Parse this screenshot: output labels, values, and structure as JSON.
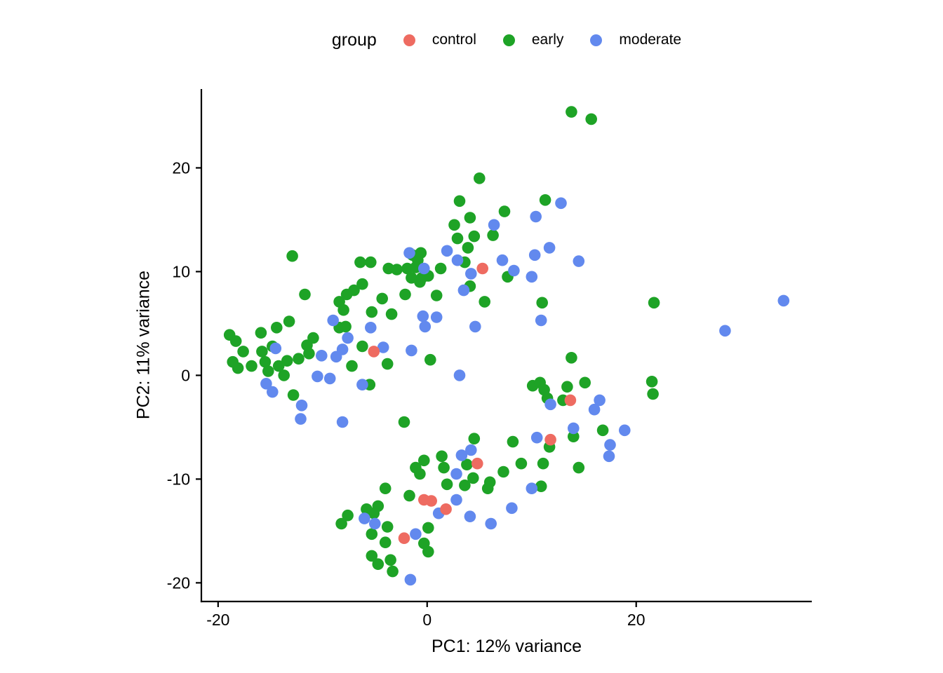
{
  "legend": {
    "title": "group",
    "entries": [
      {
        "label": "control",
        "color": "#EE6B61"
      },
      {
        "label": "early",
        "color": "#1EA326"
      },
      {
        "label": "moderate",
        "color": "#6289EE"
      }
    ]
  },
  "chart_data": {
    "type": "scatter",
    "title": "",
    "xlabel": "PC1: 12% variance",
    "ylabel": "PC2: 11% variance",
    "xticks": [
      -20,
      0,
      20
    ],
    "yticks": [
      -20,
      -10,
      0,
      10,
      20
    ],
    "xlim": [
      -21.6,
      36.8
    ],
    "ylim": [
      -21.8,
      27.6
    ],
    "grid": false,
    "legend_position": "top",
    "axis_color": "#000000",
    "point_radius_px": 8.3,
    "series": [
      {
        "name": "control",
        "color": "#EE6B61",
        "points": [
          [
            5.3,
            10.3
          ],
          [
            -5.1,
            2.3
          ],
          [
            13.7,
            -2.4
          ],
          [
            11.8,
            -6.2
          ],
          [
            4.8,
            -8.5
          ],
          [
            -0.3,
            -12.0
          ],
          [
            0.4,
            -12.1
          ],
          [
            1.8,
            -12.9
          ],
          [
            -2.2,
            -15.7
          ]
        ]
      },
      {
        "name": "early",
        "color": "#1EA326",
        "points": [
          [
            13.8,
            25.4
          ],
          [
            15.7,
            24.7
          ],
          [
            5.0,
            19.0
          ],
          [
            3.1,
            16.8
          ],
          [
            11.3,
            16.9
          ],
          [
            4.1,
            15.2
          ],
          [
            7.4,
            15.8
          ],
          [
            2.6,
            14.5
          ],
          [
            2.9,
            13.2
          ],
          [
            4.5,
            13.4
          ],
          [
            6.3,
            13.5
          ],
          [
            -12.9,
            11.5
          ],
          [
            -6.4,
            10.9
          ],
          [
            -5.4,
            10.9
          ],
          [
            -3.7,
            10.3
          ],
          [
            -2.9,
            10.2
          ],
          [
            -1.4,
            11.6
          ],
          [
            -0.6,
            11.8
          ],
          [
            -0.9,
            11.1
          ],
          [
            -1.9,
            10.3
          ],
          [
            -1.1,
            10.4
          ],
          [
            -1.5,
            9.4
          ],
          [
            -0.5,
            9.4
          ],
          [
            0.1,
            9.6
          ],
          [
            -0.7,
            9.0
          ],
          [
            1.3,
            10.3
          ],
          [
            3.9,
            12.3
          ],
          [
            3.6,
            10.9
          ],
          [
            7.7,
            9.5
          ],
          [
            5.5,
            7.1
          ],
          [
            11.0,
            7.0
          ],
          [
            0.9,
            7.7
          ],
          [
            -2.1,
            7.8
          ],
          [
            -4.3,
            7.4
          ],
          [
            4.1,
            8.6
          ],
          [
            -11.7,
            7.8
          ],
          [
            -6.2,
            8.8
          ],
          [
            -7.0,
            8.2
          ],
          [
            -7.7,
            7.8
          ],
          [
            -8.4,
            7.1
          ],
          [
            -8.0,
            6.3
          ],
          [
            -5.3,
            6.1
          ],
          [
            -3.4,
            5.9
          ],
          [
            -13.2,
            5.2
          ],
          [
            -14.4,
            4.6
          ],
          [
            -15.9,
            4.1
          ],
          [
            -18.9,
            3.9
          ],
          [
            -18.3,
            3.3
          ],
          [
            -17.6,
            2.3
          ],
          [
            -18.6,
            1.3
          ],
          [
            -18.1,
            0.7
          ],
          [
            -16.8,
            0.9
          ],
          [
            -15.5,
            1.3
          ],
          [
            -15.8,
            2.3
          ],
          [
            -14.8,
            2.8
          ],
          [
            -13.4,
            1.4
          ],
          [
            -12.3,
            1.6
          ],
          [
            -10.9,
            3.6
          ],
          [
            -11.5,
            2.9
          ],
          [
            -11.3,
            2.1
          ],
          [
            -14.2,
            0.9
          ],
          [
            -15.2,
            0.4
          ],
          [
            -13.7,
            0.0
          ],
          [
            -12.8,
            -1.9
          ],
          [
            -2.2,
            -4.5
          ],
          [
            -8.4,
            4.6
          ],
          [
            -7.8,
            4.7
          ],
          [
            -7.2,
            0.9
          ],
          [
            -6.2,
            2.8
          ],
          [
            -3.8,
            1.1
          ],
          [
            -5.5,
            -0.9
          ],
          [
            0.3,
            1.5
          ],
          [
            10.1,
            -1.0
          ],
          [
            10.8,
            -0.7
          ],
          [
            11.2,
            -1.4
          ],
          [
            11.5,
            -2.2
          ],
          [
            13.0,
            -2.4
          ],
          [
            13.4,
            -1.1
          ],
          [
            15.1,
            -0.7
          ],
          [
            14.0,
            -5.9
          ],
          [
            16.8,
            -5.3
          ],
          [
            13.8,
            1.7
          ],
          [
            21.7,
            7.0
          ],
          [
            21.5,
            -0.6
          ],
          [
            21.6,
            -1.8
          ],
          [
            -4.0,
            -10.9
          ],
          [
            -4.7,
            -12.6
          ],
          [
            -5.8,
            -12.9
          ],
          [
            -8.2,
            -14.3
          ],
          [
            -7.6,
            -13.5
          ],
          [
            -5.1,
            -13.3
          ],
          [
            -3.8,
            -14.6
          ],
          [
            -5.3,
            -15.3
          ],
          [
            -4.0,
            -16.1
          ],
          [
            -5.3,
            -17.4
          ],
          [
            -4.7,
            -18.2
          ],
          [
            -3.5,
            -17.8
          ],
          [
            -3.3,
            -18.9
          ],
          [
            -1.7,
            -11.6
          ],
          [
            1.9,
            -10.5
          ],
          [
            3.6,
            -10.6
          ],
          [
            0.1,
            -14.7
          ],
          [
            -0.3,
            -16.2
          ],
          [
            0.1,
            -17.0
          ],
          [
            5.8,
            -10.9
          ],
          [
            6.0,
            -10.3
          ],
          [
            4.5,
            -6.1
          ],
          [
            8.2,
            -6.4
          ],
          [
            11.7,
            -6.9
          ],
          [
            -0.3,
            -8.2
          ],
          [
            1.4,
            -7.8
          ],
          [
            1.6,
            -8.9
          ],
          [
            3.8,
            -8.6
          ],
          [
            -0.7,
            -9.5
          ],
          [
            -1.1,
            -8.9
          ],
          [
            4.4,
            -9.9
          ],
          [
            7.3,
            -9.3
          ],
          [
            9.0,
            -8.5
          ],
          [
            11.1,
            -8.5
          ],
          [
            14.5,
            -8.9
          ],
          [
            10.9,
            -10.7
          ]
        ]
      },
      {
        "name": "moderate",
        "color": "#6289EE",
        "points": [
          [
            12.8,
            16.6
          ],
          [
            10.4,
            15.3
          ],
          [
            6.4,
            14.5
          ],
          [
            11.7,
            12.3
          ],
          [
            1.9,
            12.0
          ],
          [
            10.3,
            11.6
          ],
          [
            14.5,
            11.0
          ],
          [
            -1.7,
            11.8
          ],
          [
            -0.3,
            10.3
          ],
          [
            2.9,
            11.1
          ],
          [
            4.2,
            9.8
          ],
          [
            7.2,
            11.1
          ],
          [
            8.3,
            10.1
          ],
          [
            10.0,
            9.5
          ],
          [
            10.9,
            5.3
          ],
          [
            3.5,
            8.2
          ],
          [
            -0.4,
            5.7
          ],
          [
            0.9,
            5.6
          ],
          [
            -0.2,
            4.7
          ],
          [
            4.6,
            4.7
          ],
          [
            -9.0,
            5.3
          ],
          [
            -5.4,
            4.6
          ],
          [
            -14.5,
            2.6
          ],
          [
            -15.4,
            -0.8
          ],
          [
            -14.8,
            -1.6
          ],
          [
            -12.0,
            -2.9
          ],
          [
            -12.1,
            -4.2
          ],
          [
            -8.1,
            -4.5
          ],
          [
            -10.5,
            -0.1
          ],
          [
            -9.3,
            -0.3
          ],
          [
            -10.1,
            1.9
          ],
          [
            -7.6,
            3.6
          ],
          [
            -8.1,
            2.5
          ],
          [
            -8.7,
            1.8
          ],
          [
            -4.2,
            2.7
          ],
          [
            -1.5,
            2.4
          ],
          [
            -6.2,
            -0.9
          ],
          [
            3.1,
            0.0
          ],
          [
            11.8,
            -2.8
          ],
          [
            16.5,
            -2.4
          ],
          [
            16.0,
            -3.3
          ],
          [
            14.0,
            -5.1
          ],
          [
            18.9,
            -5.3
          ],
          [
            17.5,
            -6.7
          ],
          [
            17.4,
            -7.8
          ],
          [
            34.1,
            7.2
          ],
          [
            28.5,
            4.3
          ],
          [
            -6.0,
            -13.8
          ],
          [
            -5.0,
            -14.3
          ],
          [
            -1.6,
            -19.7
          ],
          [
            2.8,
            -12.0
          ],
          [
            1.1,
            -13.3
          ],
          [
            4.1,
            -13.6
          ],
          [
            -1.1,
            -15.3
          ],
          [
            6.1,
            -14.3
          ],
          [
            10.5,
            -6.0
          ],
          [
            3.3,
            -7.7
          ],
          [
            4.2,
            -7.2
          ],
          [
            2.8,
            -9.5
          ],
          [
            10.0,
            -10.9
          ],
          [
            8.1,
            -12.8
          ]
        ]
      }
    ]
  }
}
